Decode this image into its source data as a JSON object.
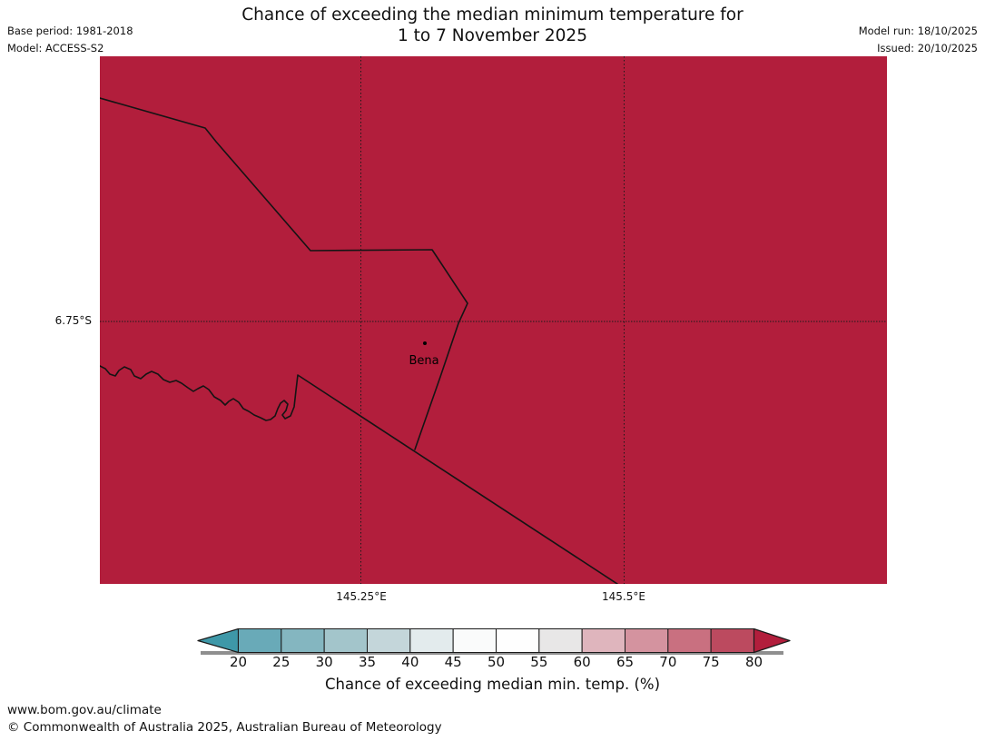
{
  "header": {
    "title_line1": "Chance of exceeding the median minimum temperature for",
    "title_line2": "1 to 7 November 2025",
    "base_period": "Base period: 1981-2018",
    "model": "Model: ACCESS-S2",
    "model_run": "Model run: 18/10/2025",
    "issued": "Issued: 20/10/2025"
  },
  "map": {
    "fill_color": "#B21E3C",
    "boundary_color": "#141414",
    "gridline_color": "#1a1a1a",
    "lat_label": "6.75°S",
    "lon_labels": [
      "145.25°E",
      "145.5°E"
    ],
    "marker": {
      "name": "Bena"
    }
  },
  "colorbar": {
    "caption": "Chance of exceeding median min. temp. (%)",
    "tick_labels": [
      "20",
      "25",
      "30",
      "35",
      "40",
      "45",
      "50",
      "55",
      "60",
      "65",
      "70",
      "75",
      "80"
    ],
    "segment_colors": [
      "#69AAB8",
      "#84B6C0",
      "#A3C5CB",
      "#C4D6DA",
      "#E3EBED",
      "#FAFBFB",
      "#FEFEFE",
      "#E8E7E7",
      "#DFB5BD",
      "#D4939F",
      "#C97080",
      "#BC4A5F"
    ],
    "left_arrow_color": "#3E98A8",
    "right_arrow_color": "#B21E3C"
  },
  "footer": {
    "url": "www.bom.gov.au/climate",
    "copyright": "© Commonwealth of Australia 2025, Australian Bureau of Meteorology"
  }
}
